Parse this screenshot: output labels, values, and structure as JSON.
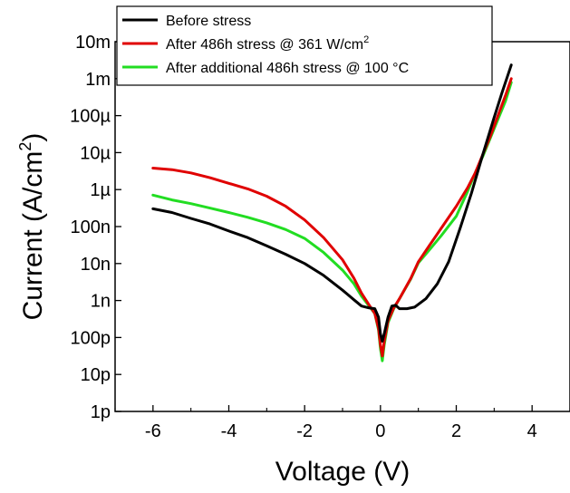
{
  "chart_data": {
    "type": "line",
    "title": "",
    "xlabel": "Voltage (V)",
    "ylabel_main": "Current (A/cm",
    "ylabel_sup": "2",
    "ylabel_tail": ")",
    "xlim": [
      -7,
      5
    ],
    "ylim_log10": [
      -12,
      -2
    ],
    "y_scale": "log",
    "grid": false,
    "legend_position": "top",
    "x_ticks": [
      {
        "value": -6,
        "label": "-6"
      },
      {
        "value": -4,
        "label": "-4"
      },
      {
        "value": -2,
        "label": "-2"
      },
      {
        "value": 0,
        "label": "0"
      },
      {
        "value": 2,
        "label": "2"
      },
      {
        "value": 4,
        "label": "4"
      }
    ],
    "y_ticks": [
      {
        "value": -2,
        "label": "10m"
      },
      {
        "value": -3,
        "label": "1m"
      },
      {
        "value": -4,
        "label": "100µ"
      },
      {
        "value": -5,
        "label": "10µ"
      },
      {
        "value": -6,
        "label": "1µ"
      },
      {
        "value": -7,
        "label": "100n"
      },
      {
        "value": -8,
        "label": "10n"
      },
      {
        "value": -9,
        "label": "1n"
      },
      {
        "value": -10,
        "label": "100p"
      },
      {
        "value": -11,
        "label": "10p"
      },
      {
        "value": -12,
        "label": "1p"
      }
    ],
    "series": [
      {
        "name": "Before stress",
        "name_sup": "",
        "name_tail": "",
        "color": "#000000",
        "points": [
          [
            -6.0,
            -6.52
          ],
          [
            -5.5,
            -6.62
          ],
          [
            -5.0,
            -6.78
          ],
          [
            -4.5,
            -6.93
          ],
          [
            -4.0,
            -7.12
          ],
          [
            -3.5,
            -7.3
          ],
          [
            -3.0,
            -7.52
          ],
          [
            -2.5,
            -7.75
          ],
          [
            -2.0,
            -8.0
          ],
          [
            -1.5,
            -8.32
          ],
          [
            -1.0,
            -8.72
          ],
          [
            -0.7,
            -8.98
          ],
          [
            -0.5,
            -9.15
          ],
          [
            -0.3,
            -9.2
          ],
          [
            -0.15,
            -9.22
          ],
          [
            -0.05,
            -9.45
          ],
          [
            0.0,
            -9.9
          ],
          [
            0.05,
            -10.1
          ],
          [
            0.1,
            -9.9
          ],
          [
            0.2,
            -9.45
          ],
          [
            0.3,
            -9.15
          ],
          [
            0.4,
            -9.13
          ],
          [
            0.5,
            -9.22
          ],
          [
            0.7,
            -9.22
          ],
          [
            0.9,
            -9.18
          ],
          [
            1.2,
            -8.95
          ],
          [
            1.5,
            -8.55
          ],
          [
            1.8,
            -7.95
          ],
          [
            2.1,
            -7.05
          ],
          [
            2.4,
            -6.1
          ],
          [
            2.7,
            -5.05
          ],
          [
            3.0,
            -4.05
          ],
          [
            3.2,
            -3.4
          ],
          [
            3.45,
            -2.63
          ]
        ]
      },
      {
        "name": "After 486h stress @ 361 W/cm",
        "name_sup": "2",
        "name_tail": "",
        "color": "#e00000",
        "points": [
          [
            -6.0,
            -5.42
          ],
          [
            -5.5,
            -5.46
          ],
          [
            -5.0,
            -5.55
          ],
          [
            -4.5,
            -5.68
          ],
          [
            -4.0,
            -5.83
          ],
          [
            -3.5,
            -5.98
          ],
          [
            -3.0,
            -6.18
          ],
          [
            -2.5,
            -6.45
          ],
          [
            -2.0,
            -6.82
          ],
          [
            -1.5,
            -7.3
          ],
          [
            -1.0,
            -7.9
          ],
          [
            -0.7,
            -8.4
          ],
          [
            -0.5,
            -8.8
          ],
          [
            -0.3,
            -9.12
          ],
          [
            -0.15,
            -9.35
          ],
          [
            -0.05,
            -9.75
          ],
          [
            0.0,
            -10.2
          ],
          [
            0.05,
            -10.5
          ],
          [
            0.1,
            -10.1
          ],
          [
            0.2,
            -9.55
          ],
          [
            0.35,
            -9.2
          ],
          [
            0.5,
            -8.95
          ],
          [
            0.8,
            -8.4
          ],
          [
            1.0,
            -7.95
          ],
          [
            1.3,
            -7.5
          ],
          [
            1.6,
            -7.05
          ],
          [
            2.0,
            -6.45
          ],
          [
            2.3,
            -5.95
          ],
          [
            2.5,
            -5.55
          ],
          [
            2.7,
            -5.05
          ],
          [
            2.9,
            -4.55
          ],
          [
            3.1,
            -4.0
          ],
          [
            3.3,
            -3.45
          ],
          [
            3.45,
            -3.0
          ]
        ]
      },
      {
        "name": "After additional 486h stress @ 100 °C",
        "name_sup": "",
        "name_tail": "",
        "color": "#22dd22",
        "points": [
          [
            -6.0,
            -6.15
          ],
          [
            -5.5,
            -6.28
          ],
          [
            -5.0,
            -6.38
          ],
          [
            -4.5,
            -6.5
          ],
          [
            -4.0,
            -6.62
          ],
          [
            -3.5,
            -6.75
          ],
          [
            -3.0,
            -6.9
          ],
          [
            -2.5,
            -7.08
          ],
          [
            -2.0,
            -7.32
          ],
          [
            -1.5,
            -7.7
          ],
          [
            -1.0,
            -8.18
          ],
          [
            -0.7,
            -8.55
          ],
          [
            -0.5,
            -8.88
          ],
          [
            -0.3,
            -9.15
          ],
          [
            -0.15,
            -9.35
          ],
          [
            -0.05,
            -9.8
          ],
          [
            0.0,
            -10.3
          ],
          [
            0.05,
            -10.63
          ],
          [
            0.1,
            -10.2
          ],
          [
            0.2,
            -9.6
          ],
          [
            0.35,
            -9.22
          ],
          [
            0.5,
            -8.95
          ],
          [
            0.8,
            -8.42
          ],
          [
            1.0,
            -7.98
          ],
          [
            1.3,
            -7.62
          ],
          [
            1.6,
            -7.25
          ],
          [
            2.0,
            -6.72
          ],
          [
            2.3,
            -6.05
          ],
          [
            2.5,
            -5.55
          ],
          [
            2.7,
            -5.1
          ],
          [
            2.9,
            -4.6
          ],
          [
            3.1,
            -4.1
          ],
          [
            3.3,
            -3.6
          ],
          [
            3.45,
            -3.1
          ]
        ]
      }
    ]
  }
}
